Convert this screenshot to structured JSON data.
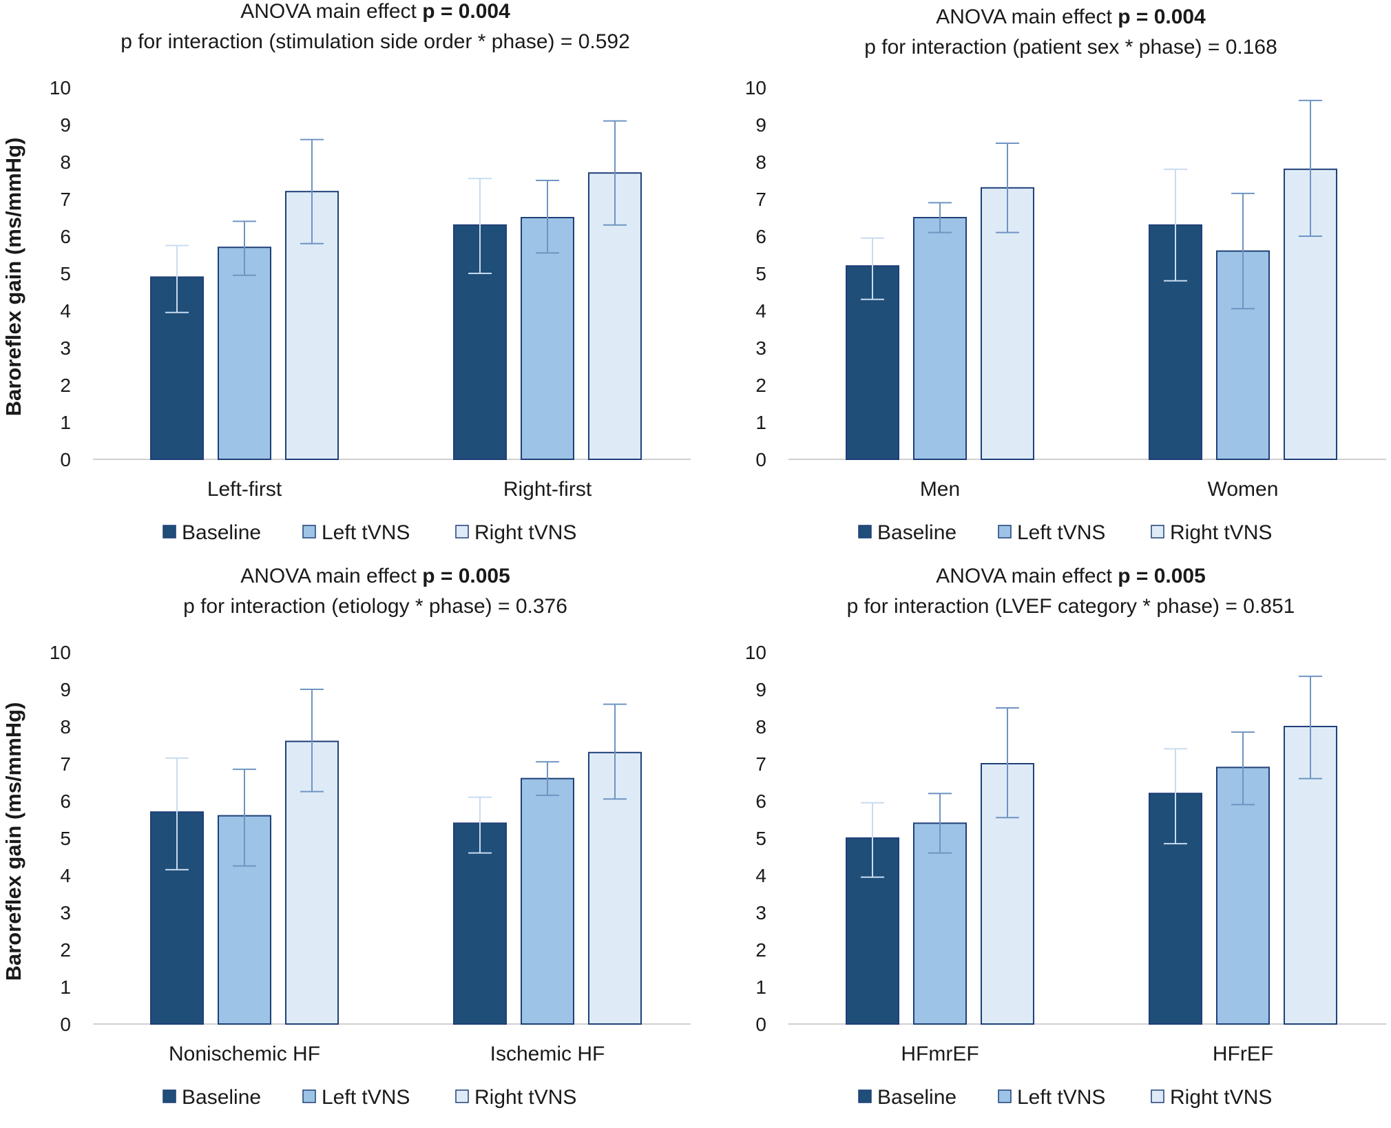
{
  "y_axis_label": "Baroreflex gain (ms/mmHg)",
  "legend": [
    {
      "label": "Baseline",
      "color": "#1f4e79"
    },
    {
      "label": "Left tVNS",
      "color": "#9dc3e6"
    },
    {
      "label": "Right tVNS",
      "color": "#deebf7"
    }
  ],
  "bar_stroke": "#1f3f78",
  "chart_data": [
    {
      "type": "bar",
      "title": "ANOVA main effect ",
      "title_bold": "p = 0.004",
      "subtitle": "p for interaction (stimulation side order * phase) = 0.592",
      "ylabel": "Baroreflex gain (ms/mmHg)",
      "ylim": [
        0,
        10
      ],
      "yticks": [
        "0",
        "1",
        "2",
        "3",
        "4",
        "5",
        "6",
        "7",
        "8",
        "9",
        "10"
      ],
      "categories": [
        "Left-first",
        "Right-first"
      ],
      "series": [
        {
          "name": "Baseline",
          "values": [
            4.9,
            6.3
          ],
          "err_low": [
            3.95,
            5.0
          ],
          "err_high": [
            5.75,
            7.55
          ]
        },
        {
          "name": "Left tVNS",
          "values": [
            5.7,
            6.5
          ],
          "err_low": [
            4.95,
            5.55
          ],
          "err_high": [
            6.4,
            7.5
          ]
        },
        {
          "name": "Right tVNS",
          "values": [
            7.2,
            7.7
          ],
          "err_low": [
            5.8,
            6.3
          ],
          "err_high": [
            8.6,
            9.1
          ]
        }
      ]
    },
    {
      "type": "bar",
      "title": "ANOVA main effect ",
      "title_bold": "p = 0.004",
      "subtitle": "p for interaction (patient sex * phase) = 0.168",
      "ylabel": "",
      "ylim": [
        0,
        10
      ],
      "yticks": [
        "0",
        "1",
        "2",
        "3",
        "4",
        "5",
        "6",
        "7",
        "8",
        "9",
        "10"
      ],
      "categories": [
        "Men",
        "Women"
      ],
      "series": [
        {
          "name": "Baseline",
          "values": [
            5.2,
            6.3
          ],
          "err_low": [
            4.3,
            4.8
          ],
          "err_high": [
            5.95,
            7.8
          ]
        },
        {
          "name": "Left tVNS",
          "values": [
            6.5,
            5.6
          ],
          "err_low": [
            6.1,
            4.05
          ],
          "err_high": [
            6.9,
            7.15
          ]
        },
        {
          "name": "Right tVNS",
          "values": [
            7.3,
            7.8
          ],
          "err_low": [
            6.1,
            6.0
          ],
          "err_high": [
            8.5,
            9.65
          ]
        }
      ]
    },
    {
      "type": "bar",
      "title": "ANOVA main effect ",
      "title_bold": "p = 0.005",
      "subtitle": "p for interaction (etiology * phase) = 0.376",
      "ylabel": "Baroreflex gain (ms/mmHg)",
      "ylim": [
        0,
        10
      ],
      "yticks": [
        "0",
        "1",
        "2",
        "3",
        "4",
        "5",
        "6",
        "7",
        "8",
        "9",
        "10"
      ],
      "categories": [
        "Nonischemic HF",
        "Ischemic HF"
      ],
      "series": [
        {
          "name": "Baseline",
          "values": [
            5.7,
            5.4
          ],
          "err_low": [
            4.15,
            4.6
          ],
          "err_high": [
            7.15,
            6.1
          ]
        },
        {
          "name": "Left tVNS",
          "values": [
            5.6,
            6.6
          ],
          "err_low": [
            4.25,
            6.15
          ],
          "err_high": [
            6.85,
            7.05
          ]
        },
        {
          "name": "Right tVNS",
          "values": [
            7.6,
            7.3
          ],
          "err_low": [
            6.25,
            6.05
          ],
          "err_high": [
            9.0,
            8.6
          ]
        }
      ]
    },
    {
      "type": "bar",
      "title": "ANOVA main effect ",
      "title_bold": "p = 0.005",
      "subtitle": "p for interaction (LVEF category * phase) = 0.851",
      "ylabel": "",
      "ylim": [
        0,
        10
      ],
      "yticks": [
        "0",
        "1",
        "2",
        "3",
        "4",
        "5",
        "6",
        "7",
        "8",
        "9",
        "10"
      ],
      "categories": [
        "HFmrEF",
        "HFrEF"
      ],
      "series": [
        {
          "name": "Baseline",
          "values": [
            5.0,
            6.2
          ],
          "err_low": [
            3.95,
            4.85
          ],
          "err_high": [
            5.95,
            7.4
          ]
        },
        {
          "name": "Left tVNS",
          "values": [
            5.4,
            6.9
          ],
          "err_low": [
            4.6,
            5.9
          ],
          "err_high": [
            6.2,
            7.85
          ]
        },
        {
          "name": "Right tVNS",
          "values": [
            7.0,
            8.0
          ],
          "err_low": [
            5.55,
            6.6
          ],
          "err_high": [
            8.5,
            9.35
          ]
        }
      ]
    }
  ]
}
